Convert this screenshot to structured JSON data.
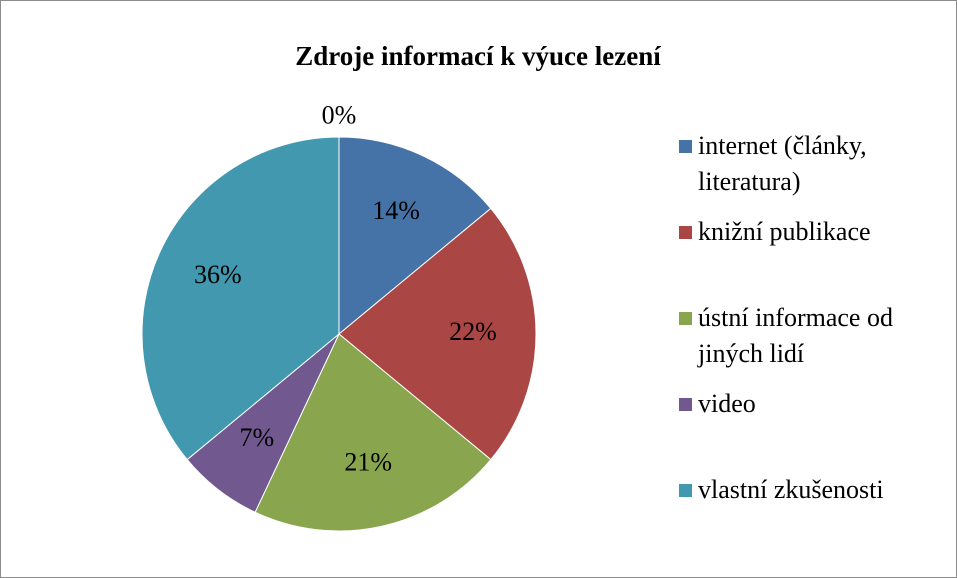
{
  "chart_data": {
    "type": "pie",
    "title": "Zdroje informací k výuce lezení",
    "categories": [
      "internet (články, literatura)",
      "knižní publikace",
      "ústní informace od jiných lidí",
      "video",
      "vlastní zkušenosti",
      null
    ],
    "values": [
      14,
      22,
      21,
      7,
      36,
      0
    ],
    "value_labels": [
      "14%",
      "22%",
      "21%",
      "7%",
      "36%",
      "0%"
    ],
    "colors": [
      "#4572a7",
      "#aa4643",
      "#89a54e",
      "#71588f",
      "#4198af"
    ],
    "legend": "right"
  }
}
